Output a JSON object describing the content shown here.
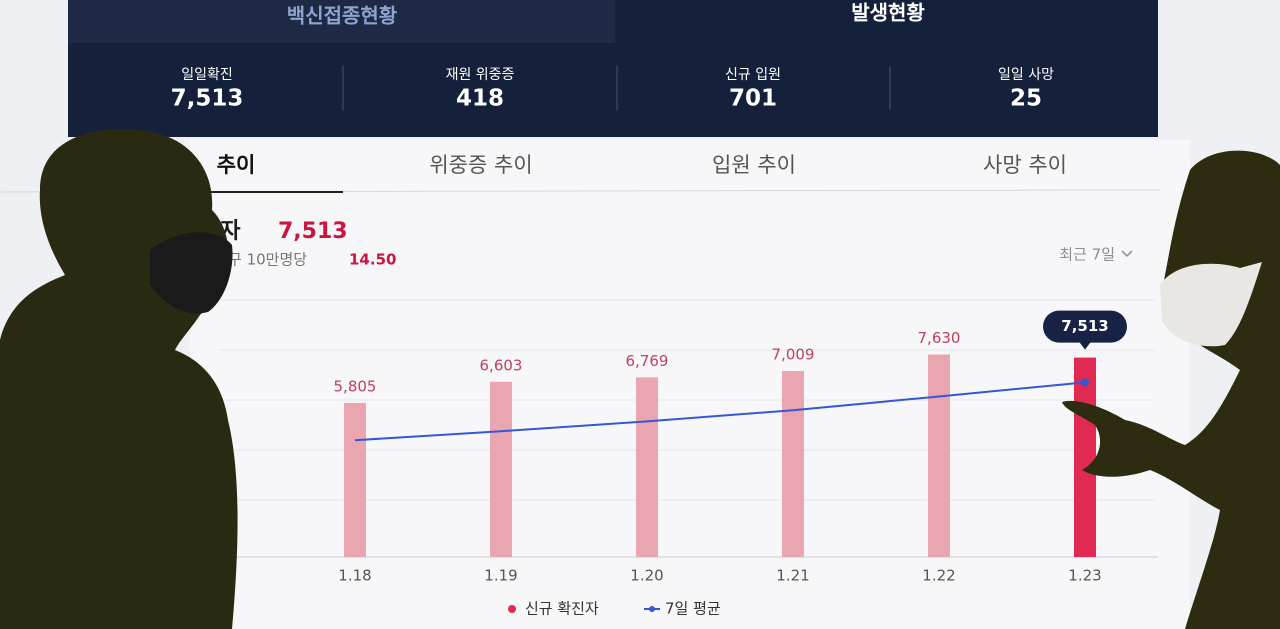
{
  "header": {
    "tabs": [
      "백신접종현황",
      "발생현황"
    ],
    "stats": [
      {
        "label": "일일확진",
        "value": "7,513"
      },
      {
        "label": "재원 위중증",
        "value": "418"
      },
      {
        "label": "신규 입원",
        "value": "701"
      },
      {
        "label": "일일 사망",
        "value": "25"
      }
    ]
  },
  "tabs": [
    "추이",
    "위중증 추이",
    "입원 추이",
    "사망 추이"
  ],
  "summary": {
    "label": "진자",
    "value": "7,513",
    "sub_label": "구 10만명당",
    "sub_value": "14.50",
    "period": "최근 7일"
  },
  "chart_data": {
    "type": "bar",
    "categories": [
      "1.18",
      "1.19",
      "1.20",
      "1.21",
      "1.22",
      "1.23"
    ],
    "series": [
      {
        "name": "신규 확진자",
        "type": "bar",
        "color": "#e9a6b0",
        "highlight_color": "#e02a52",
        "values": [
          5805,
          6603,
          6769,
          7009,
          7630,
          7513
        ],
        "value_labels": [
          "5,805",
          "6,603",
          "6,769",
          "7,009",
          "7,630",
          "7,513"
        ]
      },
      {
        "name": "7일 평균",
        "type": "line",
        "color": "#3556d8",
        "values": [
          4400,
          4740,
          5110,
          5530,
          6050,
          6580
        ]
      }
    ],
    "ylim": [
      0,
      7800
    ]
  }
}
